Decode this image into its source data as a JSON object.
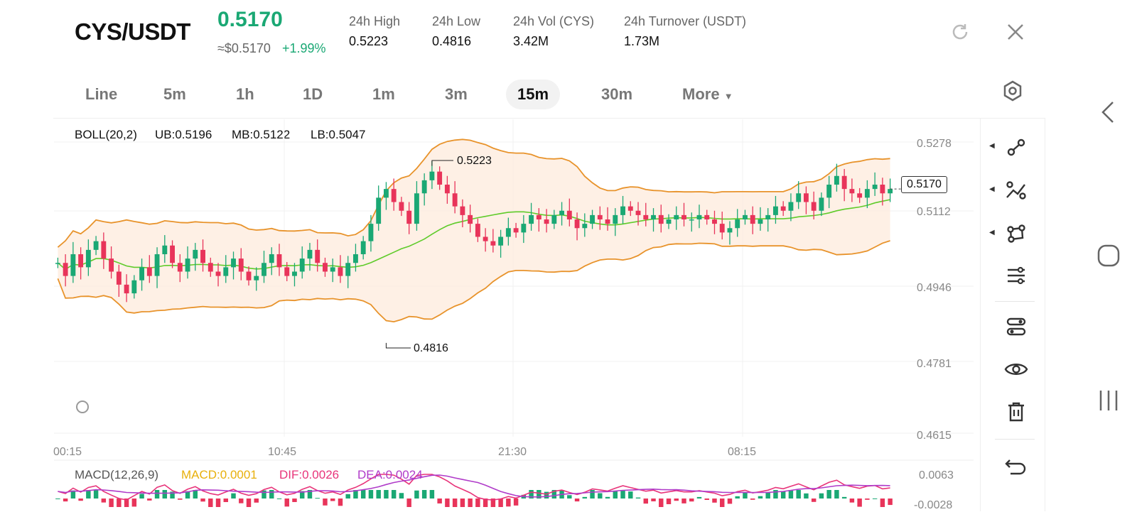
{
  "header": {
    "pair": "CYS/USDT",
    "last_price": "0.5170",
    "approx_usd": "≈$0.5170",
    "change_pct": "+1.99%",
    "stats": [
      {
        "label": "24h   High",
        "value": "0.5223"
      },
      {
        "label": "24h   Low",
        "value": "0.4816"
      },
      {
        "label": "24h   Vol (CYS)",
        "value": "3.42M"
      },
      {
        "label": "24h   Turnover (USDT)",
        "value": "1.73M"
      }
    ]
  },
  "tabs": [
    "Line",
    "5m",
    "1h",
    "1D",
    "1m",
    "3m",
    "15m",
    "30m",
    "More"
  ],
  "active_tab": "15m",
  "boll": {
    "label": "BOLL(20,2)",
    "ub": "UB:0.5196",
    "mb": "MB:0.5122",
    "lb": "LB:0.5047"
  },
  "macd": {
    "label": "MACD(12,26,9)",
    "macd": "MACD:0.0001",
    "dif": "DIF:0.0026",
    "dea": "DEA:0.0024"
  },
  "price_axis": [
    "0.5278",
    "0.5112",
    "0.4946",
    "0.4781",
    "0.4615"
  ],
  "macd_axis": [
    "0.0063",
    "-0.0028"
  ],
  "time_axis": [
    "00:15",
    "10:45",
    "21:30",
    "08:15"
  ],
  "annotations": {
    "high": "0.5223",
    "low": "0.4816",
    "current": "0.5170"
  },
  "colors": {
    "up": "#1aa874",
    "down": "#e8345a",
    "boll_label": "#e8b00c",
    "ub": "#e8932b",
    "mb": "#5fcb2a",
    "lb": "#e8932b",
    "dif": "#e8347a",
    "dea": "#b03bc9",
    "band_fill": "#fdebdc"
  },
  "chart_data": {
    "type": "candlestick",
    "title": "CYS/USDT 15m",
    "ylim": [
      0.4615,
      0.5278
    ],
    "closes": [
      0.5,
      0.497,
      0.502,
      0.499,
      0.503,
      0.505,
      0.501,
      0.498,
      0.495,
      0.493,
      0.496,
      0.499,
      0.497,
      0.502,
      0.504,
      0.5,
      0.498,
      0.501,
      0.503,
      0.5,
      0.498,
      0.497,
      0.499,
      0.501,
      0.498,
      0.496,
      0.497,
      0.5,
      0.502,
      0.499,
      0.497,
      0.498,
      0.501,
      0.503,
      0.5,
      0.498,
      0.499,
      0.497,
      0.5,
      0.502,
      0.505,
      0.509,
      0.515,
      0.517,
      0.514,
      0.512,
      0.509,
      0.516,
      0.519,
      0.521,
      0.518,
      0.516,
      0.513,
      0.511,
      0.509,
      0.506,
      0.505,
      0.504,
      0.506,
      0.508,
      0.507,
      0.509,
      0.511,
      0.51,
      0.509,
      0.511,
      0.512,
      0.51,
      0.508,
      0.509,
      0.511,
      0.51,
      0.509,
      0.511,
      0.513,
      0.512,
      0.511,
      0.51,
      0.511,
      0.509,
      0.51,
      0.511,
      0.51,
      0.51,
      0.511,
      0.51,
      0.509,
      0.507,
      0.508,
      0.51,
      0.511,
      0.509,
      0.51,
      0.511,
      0.513,
      0.512,
      0.514,
      0.516,
      0.514,
      0.512,
      0.515,
      0.518,
      0.52,
      0.517,
      0.516,
      0.515,
      0.517,
      0.518,
      0.516,
      0.517
    ],
    "boll_ub": 0.5196,
    "boll_mb": 0.5122,
    "boll_lb": 0.5047,
    "high": 0.5223,
    "low": 0.4816
  }
}
